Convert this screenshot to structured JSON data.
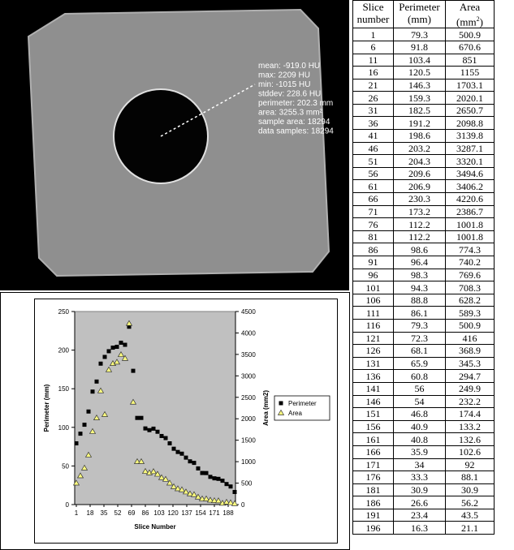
{
  "image": {
    "overlay": [
      "mean: -919.0 HU",
      "max: 2209 HU",
      "min: -1015 HU",
      "stddev: 228.6 HU",
      "perimeter: 202.3 mm",
      "area: 3255.3 mm²",
      "sample area: 18294",
      "data samples: 18294"
    ]
  },
  "chart_data": {
    "type": "scatter",
    "xlabel": "Slice Number",
    "ylabel": "Perimeter (mm)",
    "y2label": "Area (mm2)",
    "x": [
      1,
      6,
      11,
      16,
      21,
      26,
      31,
      36,
      41,
      46,
      51,
      56,
      61,
      66,
      71,
      76,
      81,
      86,
      91,
      96,
      101,
      106,
      111,
      116,
      121,
      126,
      131,
      136,
      141,
      146,
      151,
      156,
      161,
      166,
      171,
      176,
      181,
      186,
      191,
      196
    ],
    "series": [
      {
        "name": "Perimeter",
        "color": "#000000",
        "marker": "square",
        "values": [
          79.3,
          91.8,
          103.4,
          120.5,
          146.3,
          159.3,
          182.5,
          191.2,
          198.6,
          203.2,
          204.3,
          209.6,
          206.9,
          230.3,
          173.2,
          112.2,
          112.2,
          98.6,
          96.4,
          98.3,
          94.3,
          88.8,
          86.1,
          79.3,
          72.3,
          68.1,
          65.9,
          60.8,
          56,
          54,
          46.8,
          40.9,
          40.8,
          35.9,
          34,
          33.3,
          30.9,
          26.6,
          23.4,
          16.3
        ]
      },
      {
        "name": "Area",
        "color": "#ffff80",
        "marker": "triangle",
        "axis": "y2",
        "values": [
          500.9,
          670.6,
          851,
          1155,
          1703.1,
          2020.1,
          2650.7,
          2098.8,
          3139.8,
          3287.1,
          3320.1,
          3494.6,
          3406.2,
          4220.6,
          2386.7,
          1001.8,
          1001.8,
          774.3,
          740.2,
          769.6,
          708.3,
          628.2,
          589.3,
          500.9,
          416,
          368.9,
          345.3,
          294.7,
          249.9,
          232.2,
          174.4,
          133.2,
          132.6,
          102.6,
          92,
          88.1,
          30.9,
          56.2,
          43.5,
          21.1
        ]
      }
    ],
    "xlim": [
      -1,
      197
    ],
    "xticks": [
      1,
      18,
      35,
      52,
      69,
      86,
      103,
      120,
      137,
      154,
      171,
      188
    ],
    "ylim": [
      0,
      250
    ],
    "yticks": [
      0,
      50,
      100,
      150,
      200,
      250
    ],
    "y2lim": [
      0,
      4500
    ],
    "y2ticks": [
      0,
      500,
      1000,
      1500,
      2000,
      2500,
      3000,
      3500,
      4000,
      4500
    ],
    "legend": "right",
    "plot_background": "#c0c0c0"
  },
  "table": {
    "header": [
      [
        "Slice",
        "number"
      ],
      [
        "Perimeter",
        "(mm)"
      ],
      [
        "Area",
        "(mm",
        "2",
        ")"
      ]
    ],
    "rows": [
      [
        1,
        79.3,
        500.9
      ],
      [
        6,
        91.8,
        670.6
      ],
      [
        11,
        103.4,
        851
      ],
      [
        16,
        120.5,
        1155
      ],
      [
        21,
        146.3,
        1703.1
      ],
      [
        26,
        159.3,
        2020.1
      ],
      [
        31,
        182.5,
        2650.7
      ],
      [
        36,
        191.2,
        2098.8
      ],
      [
        41,
        198.6,
        3139.8
      ],
      [
        46,
        203.2,
        3287.1
      ],
      [
        51,
        204.3,
        3320.1
      ],
      [
        56,
        209.6,
        3494.6
      ],
      [
        61,
        206.9,
        3406.2
      ],
      [
        66,
        230.3,
        4220.6
      ],
      [
        71,
        173.2,
        2386.7
      ],
      [
        76,
        112.2,
        1001.8
      ],
      [
        81,
        112.2,
        1001.8
      ],
      [
        86,
        98.6,
        774.3
      ],
      [
        91,
        96.4,
        740.2
      ],
      [
        96,
        98.3,
        769.6
      ],
      [
        101,
        94.3,
        708.3
      ],
      [
        106,
        88.8,
        628.2
      ],
      [
        111,
        86.1,
        589.3
      ],
      [
        116,
        79.3,
        500.9
      ],
      [
        121,
        72.3,
        416
      ],
      [
        126,
        68.1,
        368.9
      ],
      [
        131,
        65.9,
        345.3
      ],
      [
        136,
        60.8,
        294.7
      ],
      [
        141,
        56,
        249.9
      ],
      [
        146,
        54,
        232.2
      ],
      [
        151,
        46.8,
        174.4
      ],
      [
        156,
        40.9,
        133.2
      ],
      [
        161,
        40.8,
        132.6
      ],
      [
        166,
        35.9,
        102.6
      ],
      [
        171,
        34,
        92
      ],
      [
        176,
        33.3,
        88.1
      ],
      [
        181,
        30.9,
        30.9
      ],
      [
        186,
        26.6,
        56.2
      ],
      [
        191,
        23.4,
        43.5
      ],
      [
        196,
        16.3,
        21.1
      ]
    ]
  }
}
